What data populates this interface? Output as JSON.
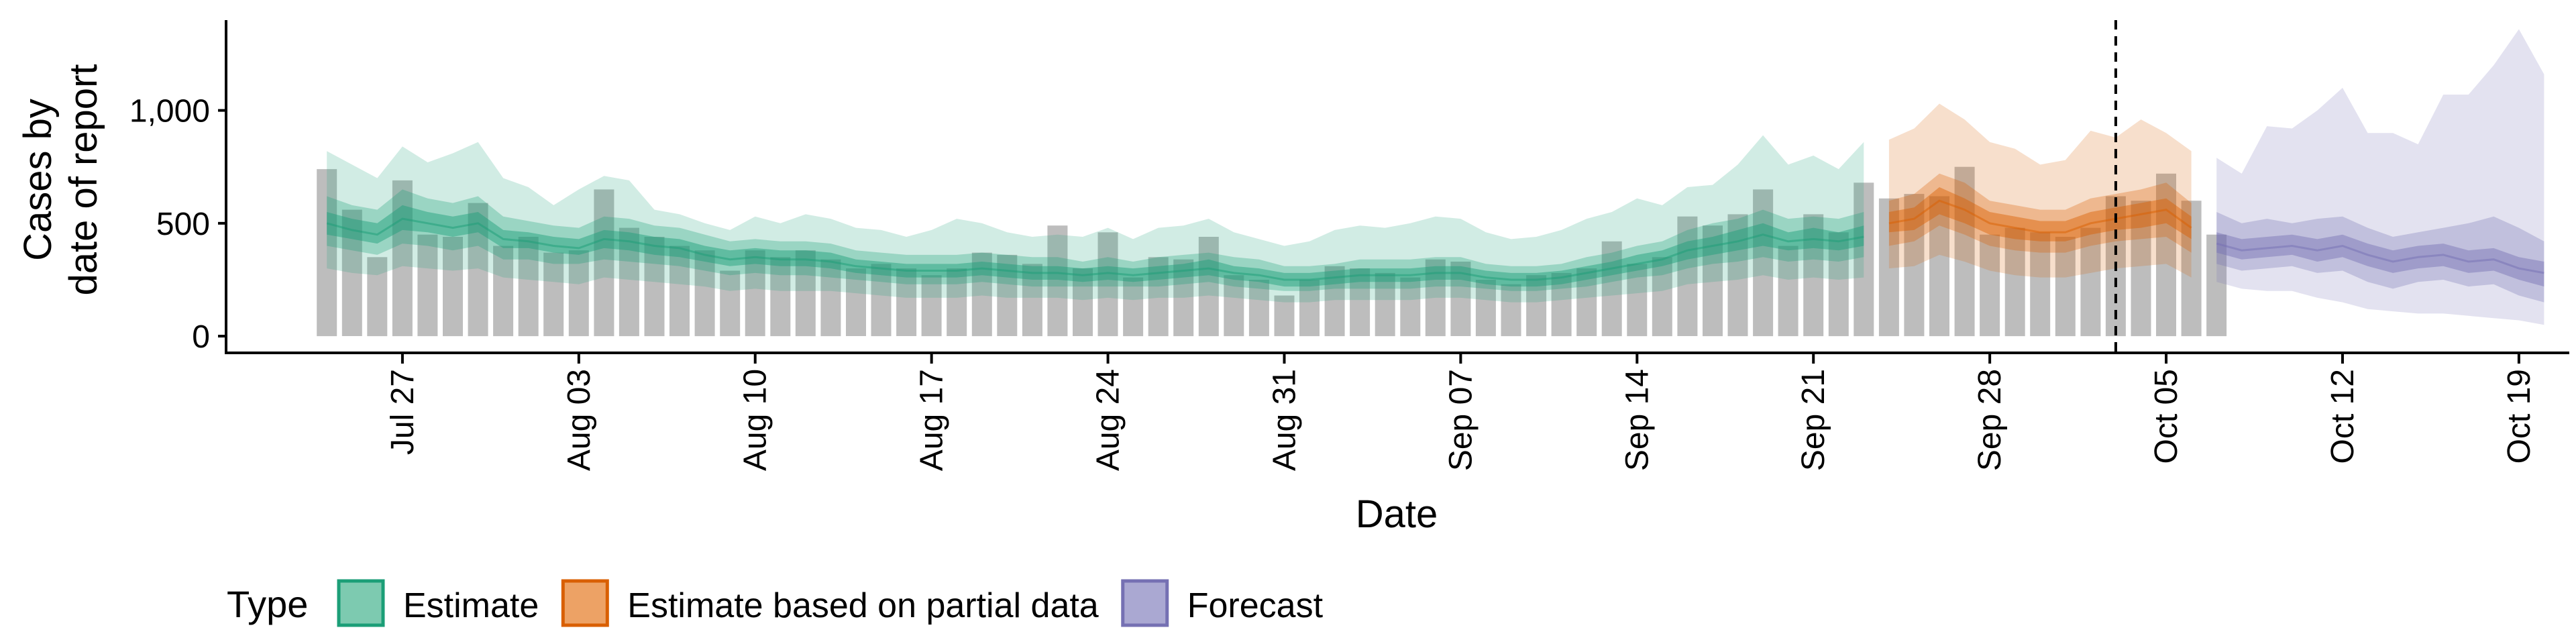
{
  "chart_data": {
    "type": "area",
    "title": "",
    "xlabel": "Date",
    "ylabel_lines": [
      "Cases by",
      "date of report"
    ],
    "ylim": [
      -80,
      1400
    ],
    "yticks": [
      0,
      500,
      1000
    ],
    "ytick_labels": [
      "0",
      "500",
      "1,000"
    ],
    "x_start": "2021-07-24",
    "xlim": [
      "2021-07-20",
      "2021-10-21"
    ],
    "xticks": [
      "2021-07-27",
      "2021-08-03",
      "2021-08-10",
      "2021-08-17",
      "2021-08-24",
      "2021-08-31",
      "2021-09-07",
      "2021-09-14",
      "2021-09-21",
      "2021-09-28",
      "2021-10-05",
      "2021-10-12",
      "2021-10-19"
    ],
    "xtick_labels": [
      "Jul 27",
      "Aug 03",
      "Aug 10",
      "Aug 17",
      "Aug 24",
      "Aug 31",
      "Sep 07",
      "Sep 14",
      "Sep 21",
      "Sep 28",
      "Oct 05",
      "Oct 12",
      "Oct 19"
    ],
    "forecast_start_line": "2021-10-03",
    "observed_cases": [
      740,
      560,
      350,
      690,
      450,
      440,
      590,
      400,
      440,
      370,
      380,
      650,
      480,
      440,
      400,
      380,
      290,
      380,
      350,
      380,
      340,
      300,
      320,
      300,
      270,
      300,
      370,
      360,
      320,
      490,
      300,
      460,
      260,
      350,
      340,
      440,
      270,
      250,
      180,
      250,
      310,
      300,
      280,
      260,
      340,
      330,
      250,
      230,
      270,
      280,
      300,
      420,
      320,
      350,
      530,
      490,
      540,
      650,
      400,
      540,
      460,
      680,
      610,
      630,
      620,
      750,
      450,
      480,
      460,
      440,
      480,
      620,
      600,
      720,
      600,
      450
    ],
    "legend_title": "Type",
    "legend": [
      {
        "label": "Estimate",
        "fill": "#7dcab0",
        "stroke": "#1b9e77"
      },
      {
        "label": "Estimate based on partial data",
        "fill": "#eda265",
        "stroke": "#d95f02"
      },
      {
        "label": "Forecast",
        "fill": "#aaa8d2",
        "stroke": "#7570b3"
      }
    ],
    "series": [
      {
        "name": "Estimate",
        "color": "#1b9e77",
        "median": [
          500,
          470,
          450,
          520,
          500,
          480,
          500,
          430,
          420,
          400,
          390,
          430,
          420,
          400,
          390,
          360,
          340,
          350,
          340,
          340,
          330,
          310,
          300,
          290,
          290,
          290,
          300,
          290,
          280,
          280,
          270,
          280,
          270,
          280,
          290,
          300,
          280,
          270,
          250,
          250,
          260,
          270,
          270,
          270,
          280,
          280,
          260,
          250,
          250,
          260,
          280,
          300,
          320,
          340,
          380,
          400,
          420,
          450,
          420,
          430,
          420,
          440
        ],
        "inner": [
          [
            450,
            430,
            410,
            470,
            460,
            440,
            460,
            390,
            390,
            370,
            360,
            390,
            380,
            360,
            350,
            330,
            310,
            320,
            310,
            310,
            300,
            280,
            270,
            260,
            260,
            260,
            270,
            260,
            250,
            250,
            240,
            250,
            240,
            250,
            260,
            270,
            250,
            240,
            220,
            220,
            230,
            240,
            240,
            240,
            250,
            250,
            230,
            220,
            220,
            230,
            250,
            270,
            290,
            310,
            340,
            360,
            380,
            400,
            380,
            390,
            380,
            400
          ],
          [
            550,
            520,
            500,
            580,
            550,
            530,
            550,
            470,
            460,
            440,
            430,
            470,
            460,
            440,
            430,
            400,
            380,
            390,
            380,
            380,
            370,
            340,
            330,
            320,
            320,
            320,
            330,
            320,
            310,
            310,
            300,
            310,
            300,
            310,
            320,
            340,
            310,
            300,
            280,
            280,
            290,
            300,
            300,
            300,
            310,
            310,
            290,
            280,
            280,
            290,
            310,
            330,
            360,
            380,
            420,
            440,
            470,
            500,
            460,
            480,
            460,
            490
          ]
        ],
        "mid": [
          [
            400,
            380,
            360,
            410,
            400,
            380,
            400,
            340,
            340,
            320,
            320,
            340,
            330,
            320,
            310,
            290,
            270,
            280,
            270,
            270,
            260,
            250,
            240,
            230,
            230,
            230,
            240,
            230,
            220,
            220,
            220,
            220,
            220,
            220,
            230,
            240,
            220,
            210,
            200,
            200,
            210,
            210,
            210,
            210,
            220,
            220,
            210,
            200,
            200,
            210,
            220,
            240,
            260,
            270,
            300,
            320,
            330,
            350,
            330,
            340,
            330,
            350
          ],
          [
            620,
            580,
            560,
            650,
            610,
            590,
            620,
            530,
            510,
            490,
            480,
            530,
            520,
            490,
            480,
            450,
            420,
            430,
            420,
            420,
            410,
            380,
            370,
            360,
            360,
            360,
            370,
            360,
            350,
            350,
            330,
            350,
            330,
            350,
            360,
            370,
            350,
            340,
            310,
            310,
            320,
            340,
            340,
            340,
            350,
            350,
            320,
            310,
            310,
            320,
            350,
            370,
            400,
            420,
            470,
            500,
            520,
            560,
            520,
            530,
            520,
            550
          ]
        ],
        "outer": [
          [
            300,
            280,
            270,
            310,
            300,
            290,
            300,
            260,
            250,
            240,
            230,
            260,
            250,
            240,
            230,
            220,
            200,
            210,
            200,
            200,
            200,
            190,
            180,
            170,
            170,
            170,
            180,
            170,
            170,
            170,
            160,
            170,
            160,
            170,
            170,
            180,
            170,
            160,
            150,
            150,
            160,
            160,
            160,
            160,
            170,
            170,
            160,
            150,
            150,
            160,
            170,
            180,
            190,
            200,
            230,
            240,
            250,
            270,
            250,
            260,
            250,
            260
          ],
          [
            820,
            760,
            700,
            840,
            770,
            810,
            860,
            700,
            660,
            580,
            650,
            710,
            690,
            560,
            540,
            500,
            470,
            530,
            500,
            540,
            520,
            480,
            470,
            440,
            470,
            520,
            500,
            460,
            440,
            450,
            440,
            480,
            430,
            480,
            490,
            520,
            460,
            430,
            400,
            420,
            470,
            490,
            480,
            500,
            530,
            520,
            460,
            430,
            440,
            470,
            520,
            550,
            610,
            580,
            660,
            670,
            760,
            890,
            760,
            800,
            740,
            860
          ]
        ]
      },
      {
        "name": "Estimate based on partial data",
        "color": "#d95f02",
        "median": [
          500,
          520,
          600,
          560,
          500,
          480,
          460,
          460,
          500,
          520,
          540,
          560,
          480
        ],
        "inner": [
          [
            460,
            470,
            540,
            500,
            450,
            430,
            420,
            420,
            450,
            470,
            480,
            500,
            430
          ],
          [
            550,
            570,
            660,
            610,
            550,
            530,
            510,
            510,
            550,
            570,
            590,
            610,
            530
          ]
        ],
        "mid": [
          [
            400,
            420,
            490,
            450,
            400,
            380,
            370,
            370,
            400,
            420,
            430,
            440,
            370
          ],
          [
            600,
            630,
            720,
            680,
            600,
            580,
            560,
            560,
            610,
            630,
            650,
            680,
            590
          ]
        ],
        "outer": [
          [
            300,
            310,
            360,
            330,
            290,
            270,
            260,
            260,
            280,
            300,
            310,
            320,
            260
          ],
          [
            870,
            920,
            1030,
            960,
            860,
            830,
            760,
            780,
            910,
            880,
            960,
            900,
            820
          ]
        ]
      },
      {
        "name": "Forecast",
        "color": "#7570b3",
        "median": [
          410,
          380,
          390,
          400,
          380,
          400,
          360,
          330,
          350,
          360,
          330,
          340,
          300,
          280
        ],
        "inner": [
          [
            370,
            340,
            350,
            360,
            330,
            350,
            310,
            280,
            300,
            310,
            280,
            290,
            250,
            220
          ],
          [
            460,
            430,
            440,
            450,
            430,
            450,
            410,
            380,
            400,
            410,
            380,
            390,
            350,
            330
          ]
        ],
        "mid": [
          [
            320,
            290,
            300,
            310,
            280,
            290,
            240,
            210,
            240,
            250,
            220,
            230,
            180,
            150
          ],
          [
            550,
            500,
            520,
            500,
            520,
            530,
            480,
            440,
            460,
            480,
            500,
            530,
            480,
            420
          ]
        ],
        "outer": [
          [
            240,
            210,
            200,
            200,
            170,
            150,
            120,
            110,
            100,
            100,
            90,
            80,
            70,
            50
          ],
          [
            790,
            720,
            930,
            920,
            1000,
            1100,
            900,
            900,
            850,
            1070,
            1070,
            1200,
            1360,
            1160
          ]
        ]
      }
    ]
  }
}
